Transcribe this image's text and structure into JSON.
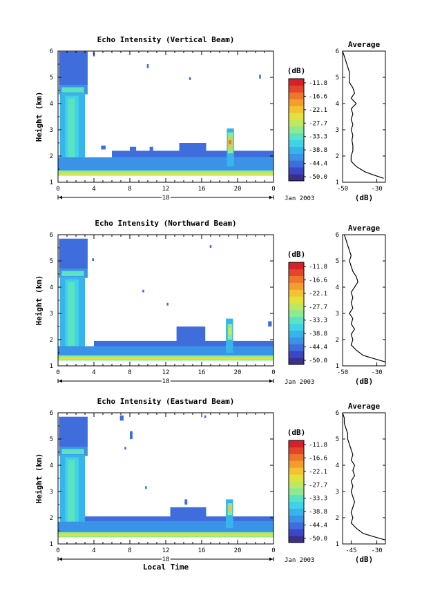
{
  "figure": {
    "date_label": "Jan 2003",
    "xlabel": "Local Time",
    "colorbar_unit": "(dB)",
    "avg_title": "Average",
    "avg_xlabel": "(dB)"
  },
  "colors": {
    "background": "#ffffff",
    "colormap": [
      "#3a2f8a",
      "#3b47c8",
      "#3f6ddc",
      "#3a93e6",
      "#38b4ec",
      "#3fd2e8",
      "#59e3c2",
      "#8ce994",
      "#bfe860",
      "#e2e23d",
      "#f4c232",
      "#f39d2c",
      "#ee762a",
      "#e3462a",
      "#d6202a"
    ]
  },
  "chart_data": [
    {
      "type": "heatmap",
      "title": "Echo Intensity (Vertical Beam)",
      "ylabel": "Height (km)",
      "xlabel": "Local Time",
      "xticks": [
        "0",
        "4",
        "8",
        "12",
        "16",
        "20",
        "0"
      ],
      "xlim": [
        0,
        24
      ],
      "day_marker": "18",
      "ylim": [
        1,
        6
      ],
      "yticks": [
        "1",
        "2",
        "3",
        "4",
        "5",
        "6"
      ],
      "colorbar": {
        "unit": "(dB)",
        "ticks": [
          "-11.8",
          "-16.6",
          "-22.1",
          "-27.7",
          "-33.3",
          "-38.8",
          "-44.4",
          "-50.0"
        ],
        "range": [
          -55,
          -8
        ]
      },
      "features": [
        {
          "x0": 0.1,
          "x1": 3.3,
          "y0": 4.7,
          "y1": 5.98,
          "db": -47
        },
        {
          "x0": 0.1,
          "x1": 3.3,
          "y0": 4.35,
          "y1": 4.7,
          "db": -43
        },
        {
          "x0": 0.4,
          "x1": 2.9,
          "y0": 4.42,
          "y1": 4.62,
          "db": -35
        },
        {
          "x0": 0.2,
          "x1": 3.0,
          "y0": 1.35,
          "y1": 4.4,
          "db": -41
        },
        {
          "x0": 0.8,
          "x1": 2.3,
          "y0": 1.5,
          "y1": 4.3,
          "db": -37
        },
        {
          "x0": 1.1,
          "x1": 1.9,
          "y0": 1.6,
          "y1": 4.2,
          "db": -34
        },
        {
          "x0": 0.0,
          "x1": 24.0,
          "y0": 1.35,
          "y1": 1.95,
          "db": -45
        },
        {
          "x0": 6.0,
          "x1": 24.0,
          "y0": 1.95,
          "y1": 2.2,
          "db": -48
        },
        {
          "x0": 13.5,
          "x1": 16.5,
          "y0": 2.0,
          "y1": 2.5,
          "db": -46
        },
        {
          "x0": 0.0,
          "x1": 24.0,
          "y0": 1.25,
          "y1": 1.45,
          "db": -33
        },
        {
          "x0": 0.0,
          "x1": 24.0,
          "y0": 1.28,
          "y1": 1.37,
          "db": -25
        },
        {
          "x0": 18.8,
          "x1": 19.6,
          "y0": 1.6,
          "y1": 3.05,
          "db": -40
        },
        {
          "x0": 18.9,
          "x1": 19.5,
          "y0": 2.1,
          "y1": 2.9,
          "db": -30
        },
        {
          "x0": 18.95,
          "x1": 19.4,
          "y0": 2.3,
          "y1": 2.7,
          "db": -22
        },
        {
          "x0": 19.0,
          "x1": 19.3,
          "y0": 2.45,
          "y1": 2.6,
          "db": -16
        },
        {
          "x0": 8.0,
          "x1": 8.7,
          "y0": 2.2,
          "y1": 2.35,
          "db": -48
        },
        {
          "x0": 4.8,
          "x1": 5.3,
          "y0": 2.25,
          "y1": 2.4,
          "db": -48
        },
        {
          "x0": 10.2,
          "x1": 10.6,
          "y0": 2.2,
          "y1": 2.35,
          "db": -48
        },
        {
          "x0": 3.9,
          "x1": 4.1,
          "y0": 5.8,
          "y1": 5.95,
          "db": -48
        },
        {
          "x0": 9.9,
          "x1": 10.1,
          "y0": 5.35,
          "y1": 5.5,
          "db": -48
        },
        {
          "x0": 14.6,
          "x1": 14.8,
          "y0": 4.9,
          "y1": 5.0,
          "db": -48
        },
        {
          "x0": 22.4,
          "x1": 22.6,
          "y0": 4.95,
          "y1": 5.1,
          "db": -48
        }
      ],
      "average": {
        "xlim": [
          -50,
          -25
        ],
        "xticks": [
          "-50",
          "-30"
        ],
        "heights": [
          1.15,
          1.3,
          1.4,
          1.6,
          1.8,
          2.0,
          2.2,
          2.4,
          2.6,
          2.8,
          3.0,
          3.2,
          3.4,
          3.6,
          3.8,
          4.0,
          4.2,
          4.4,
          4.6,
          4.8,
          5.0,
          5.2,
          5.4,
          5.6,
          5.8,
          6.0
        ],
        "values": [
          -26,
          -33,
          -37,
          -42,
          -45,
          -45,
          -44,
          -44,
          -44.5,
          -44,
          -45,
          -44,
          -45,
          -44,
          -45,
          -42,
          -45,
          -43,
          -44,
          -46,
          -46,
          -46,
          -47,
          -48,
          -49,
          -50
        ]
      }
    },
    {
      "type": "heatmap",
      "title": "Echo Intensity (Northward Beam)",
      "ylabel": "Height (km)",
      "xlabel": "Local Time",
      "xticks": [
        "0",
        "4",
        "8",
        "12",
        "16",
        "20",
        "0"
      ],
      "xlim": [
        0,
        24
      ],
      "day_marker": "18",
      "ylim": [
        1,
        6
      ],
      "yticks": [
        "1",
        "2",
        "3",
        "4",
        "5",
        "6"
      ],
      "colorbar": {
        "unit": "(dB)",
        "ticks": [
          "-11.8",
          "-16.6",
          "-22.1",
          "-27.7",
          "-33.3",
          "-38.8",
          "-44.4",
          "-50.0"
        ],
        "range": [
          -55,
          -8
        ]
      },
      "features": [
        {
          "x0": 0.1,
          "x1": 3.3,
          "y0": 4.7,
          "y1": 5.85,
          "db": -47
        },
        {
          "x0": 0.1,
          "x1": 3.3,
          "y0": 4.35,
          "y1": 4.7,
          "db": -43
        },
        {
          "x0": 0.4,
          "x1": 2.9,
          "y0": 4.42,
          "y1": 4.62,
          "db": -35
        },
        {
          "x0": 0.2,
          "x1": 3.0,
          "y0": 1.35,
          "y1": 4.4,
          "db": -41
        },
        {
          "x0": 0.8,
          "x1": 2.3,
          "y0": 1.5,
          "y1": 4.3,
          "db": -37
        },
        {
          "x0": 1.1,
          "x1": 1.9,
          "y0": 1.6,
          "y1": 4.2,
          "db": -34
        },
        {
          "x0": 0.0,
          "x1": 24.0,
          "y0": 1.35,
          "y1": 1.75,
          "db": -45
        },
        {
          "x0": 4.0,
          "x1": 24.0,
          "y0": 1.75,
          "y1": 1.95,
          "db": -48
        },
        {
          "x0": 13.2,
          "x1": 16.4,
          "y0": 1.9,
          "y1": 2.5,
          "db": -46
        },
        {
          "x0": 0.0,
          "x1": 24.0,
          "y0": 1.2,
          "y1": 1.4,
          "db": -31
        },
        {
          "x0": 0.0,
          "x1": 24.0,
          "y0": 1.24,
          "y1": 1.33,
          "db": -24
        },
        {
          "x0": 18.7,
          "x1": 19.5,
          "y0": 1.5,
          "y1": 2.8,
          "db": -40
        },
        {
          "x0": 18.9,
          "x1": 19.4,
          "y0": 2.0,
          "y1": 2.6,
          "db": -32
        },
        {
          "x0": 19.0,
          "x1": 19.3,
          "y0": 2.2,
          "y1": 2.45,
          "db": -25
        },
        {
          "x0": 3.8,
          "x1": 4.0,
          "y0": 5.0,
          "y1": 5.1,
          "db": -48
        },
        {
          "x0": 9.4,
          "x1": 9.6,
          "y0": 3.8,
          "y1": 3.9,
          "db": -48
        },
        {
          "x0": 12.1,
          "x1": 12.3,
          "y0": 3.3,
          "y1": 3.4,
          "db": -48
        },
        {
          "x0": 16.9,
          "x1": 17.1,
          "y0": 5.5,
          "y1": 5.6,
          "db": -48
        },
        {
          "x0": 23.4,
          "x1": 23.8,
          "y0": 2.5,
          "y1": 2.7,
          "db": -48
        }
      ],
      "average": {
        "xlim": [
          -50,
          -25
        ],
        "xticks": [
          "-50",
          "-30"
        ],
        "heights": [
          1.15,
          1.3,
          1.4,
          1.6,
          1.8,
          2.0,
          2.2,
          2.4,
          2.6,
          2.8,
          3.0,
          3.2,
          3.4,
          3.6,
          3.8,
          4.0,
          4.2,
          4.4,
          4.6,
          4.8,
          5.0,
          5.2,
          5.4,
          5.6,
          5.8,
          6.0
        ],
        "values": [
          -25,
          -33,
          -38,
          -42,
          -45,
          -44,
          -45,
          -43,
          -45,
          -44,
          -46,
          -44,
          -45,
          -44,
          -45,
          -43,
          -41,
          -42,
          -44,
          -45,
          -46,
          -45,
          -46,
          -47,
          -48,
          -49
        ]
      }
    },
    {
      "type": "heatmap",
      "title": "Echo Intensity (Eastward Beam)",
      "ylabel": "Height (km)",
      "xlabel": "Local Time",
      "xticks": [
        "0",
        "4",
        "8",
        "12",
        "16",
        "20",
        "0"
      ],
      "xlim": [
        0,
        24
      ],
      "day_marker": "18",
      "ylim": [
        1,
        6
      ],
      "yticks": [
        "1",
        "2",
        "3",
        "4",
        "5",
        "6"
      ],
      "colorbar": {
        "unit": "(dB)",
        "ticks": [
          "-11.8",
          "-16.6",
          "-22.1",
          "-27.7",
          "-33.3",
          "-38.8",
          "-44.4",
          "-50.0"
        ],
        "range": [
          -55,
          -8
        ]
      },
      "features": [
        {
          "x0": 0.1,
          "x1": 3.3,
          "y0": 4.7,
          "y1": 5.85,
          "db": -47
        },
        {
          "x0": 0.1,
          "x1": 3.3,
          "y0": 4.35,
          "y1": 4.7,
          "db": -43
        },
        {
          "x0": 0.4,
          "x1": 2.9,
          "y0": 4.42,
          "y1": 4.62,
          "db": -35
        },
        {
          "x0": 0.2,
          "x1": 3.0,
          "y0": 1.35,
          "y1": 4.4,
          "db": -41
        },
        {
          "x0": 0.8,
          "x1": 2.3,
          "y0": 1.5,
          "y1": 4.3,
          "db": -37
        },
        {
          "x0": 1.1,
          "x1": 1.9,
          "y0": 1.6,
          "y1": 4.2,
          "db": -34
        },
        {
          "x0": 0.0,
          "x1": 24.0,
          "y0": 1.35,
          "y1": 1.85,
          "db": -45
        },
        {
          "x0": 3.0,
          "x1": 24.0,
          "y0": 1.85,
          "y1": 2.05,
          "db": -48
        },
        {
          "x0": 12.5,
          "x1": 16.5,
          "y0": 1.9,
          "y1": 2.4,
          "db": -46
        },
        {
          "x0": 0.0,
          "x1": 24.0,
          "y0": 1.25,
          "y1": 1.45,
          "db": -32
        },
        {
          "x0": 0.0,
          "x1": 24.0,
          "y0": 1.3,
          "y1": 1.38,
          "db": -24
        },
        {
          "x0": 18.7,
          "x1": 19.5,
          "y0": 1.6,
          "y1": 2.7,
          "db": -40
        },
        {
          "x0": 18.9,
          "x1": 19.4,
          "y0": 2.1,
          "y1": 2.55,
          "db": -30
        },
        {
          "x0": 19.0,
          "x1": 19.3,
          "y0": 2.25,
          "y1": 2.45,
          "db": -23
        },
        {
          "x0": 6.9,
          "x1": 7.3,
          "y0": 5.7,
          "y1": 5.9,
          "db": -48
        },
        {
          "x0": 8.0,
          "x1": 8.3,
          "y0": 5.0,
          "y1": 5.3,
          "db": -48
        },
        {
          "x0": 7.4,
          "x1": 7.6,
          "y0": 4.6,
          "y1": 4.7,
          "db": -48
        },
        {
          "x0": 9.7,
          "x1": 9.9,
          "y0": 3.1,
          "y1": 3.2,
          "db": -48
        },
        {
          "x0": 16.3,
          "x1": 16.5,
          "y0": 5.8,
          "y1": 5.9,
          "db": -48
        },
        {
          "x0": 14.1,
          "x1": 14.4,
          "y0": 2.5,
          "y1": 2.7,
          "db": -48
        }
      ],
      "average": {
        "xlim": [
          -50,
          -25
        ],
        "xticks": [
          "-45",
          "-30"
        ],
        "heights": [
          1.15,
          1.3,
          1.4,
          1.6,
          1.8,
          2.0,
          2.2,
          2.4,
          2.6,
          2.8,
          3.0,
          3.2,
          3.4,
          3.6,
          3.8,
          4.0,
          4.2,
          4.4,
          4.6,
          4.8,
          5.0,
          5.2,
          5.4,
          5.6,
          5.8,
          6.0
        ],
        "values": [
          -25,
          -33,
          -38,
          -42,
          -45,
          -44,
          -45,
          -44,
          -43,
          -44,
          -45,
          -44,
          -45,
          -43,
          -44,
          -43,
          -45,
          -44,
          -45,
          -46,
          -47,
          -47,
          -48,
          -49,
          -49,
          -50
        ]
      }
    }
  ]
}
